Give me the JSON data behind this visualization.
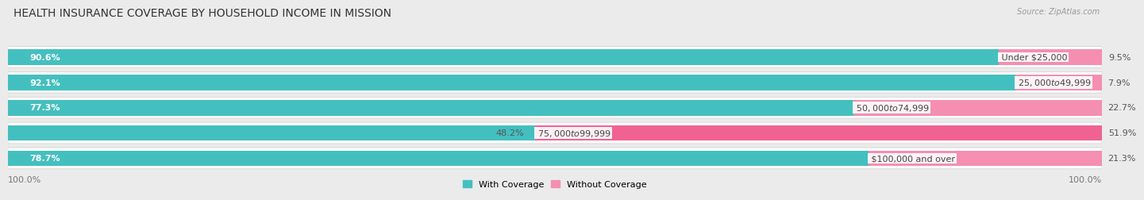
{
  "title": "HEALTH INSURANCE COVERAGE BY HOUSEHOLD INCOME IN MISSION",
  "source": "Source: ZipAtlas.com",
  "categories": [
    "Under $25,000",
    "$25,000 to $49,999",
    "$50,000 to $74,999",
    "$75,000 to $99,999",
    "$100,000 and over"
  ],
  "with_coverage": [
    90.6,
    92.1,
    77.3,
    48.2,
    78.7
  ],
  "without_coverage": [
    9.5,
    7.9,
    22.7,
    51.9,
    21.3
  ],
  "with_coverage_color": "#44bfbf",
  "without_coverage_color": "#f48fb1",
  "without_coverage_color_75k": "#f06292",
  "bg_color": "#ebebeb",
  "row_bg_color": "#f5f5f5",
  "title_fontsize": 10,
  "label_fontsize": 8,
  "tick_fontsize": 8,
  "legend_fontsize": 8,
  "source_fontsize": 7,
  "bar_height": 0.62,
  "total_width": 100,
  "left_label": "100.0%",
  "right_label": "100.0%"
}
